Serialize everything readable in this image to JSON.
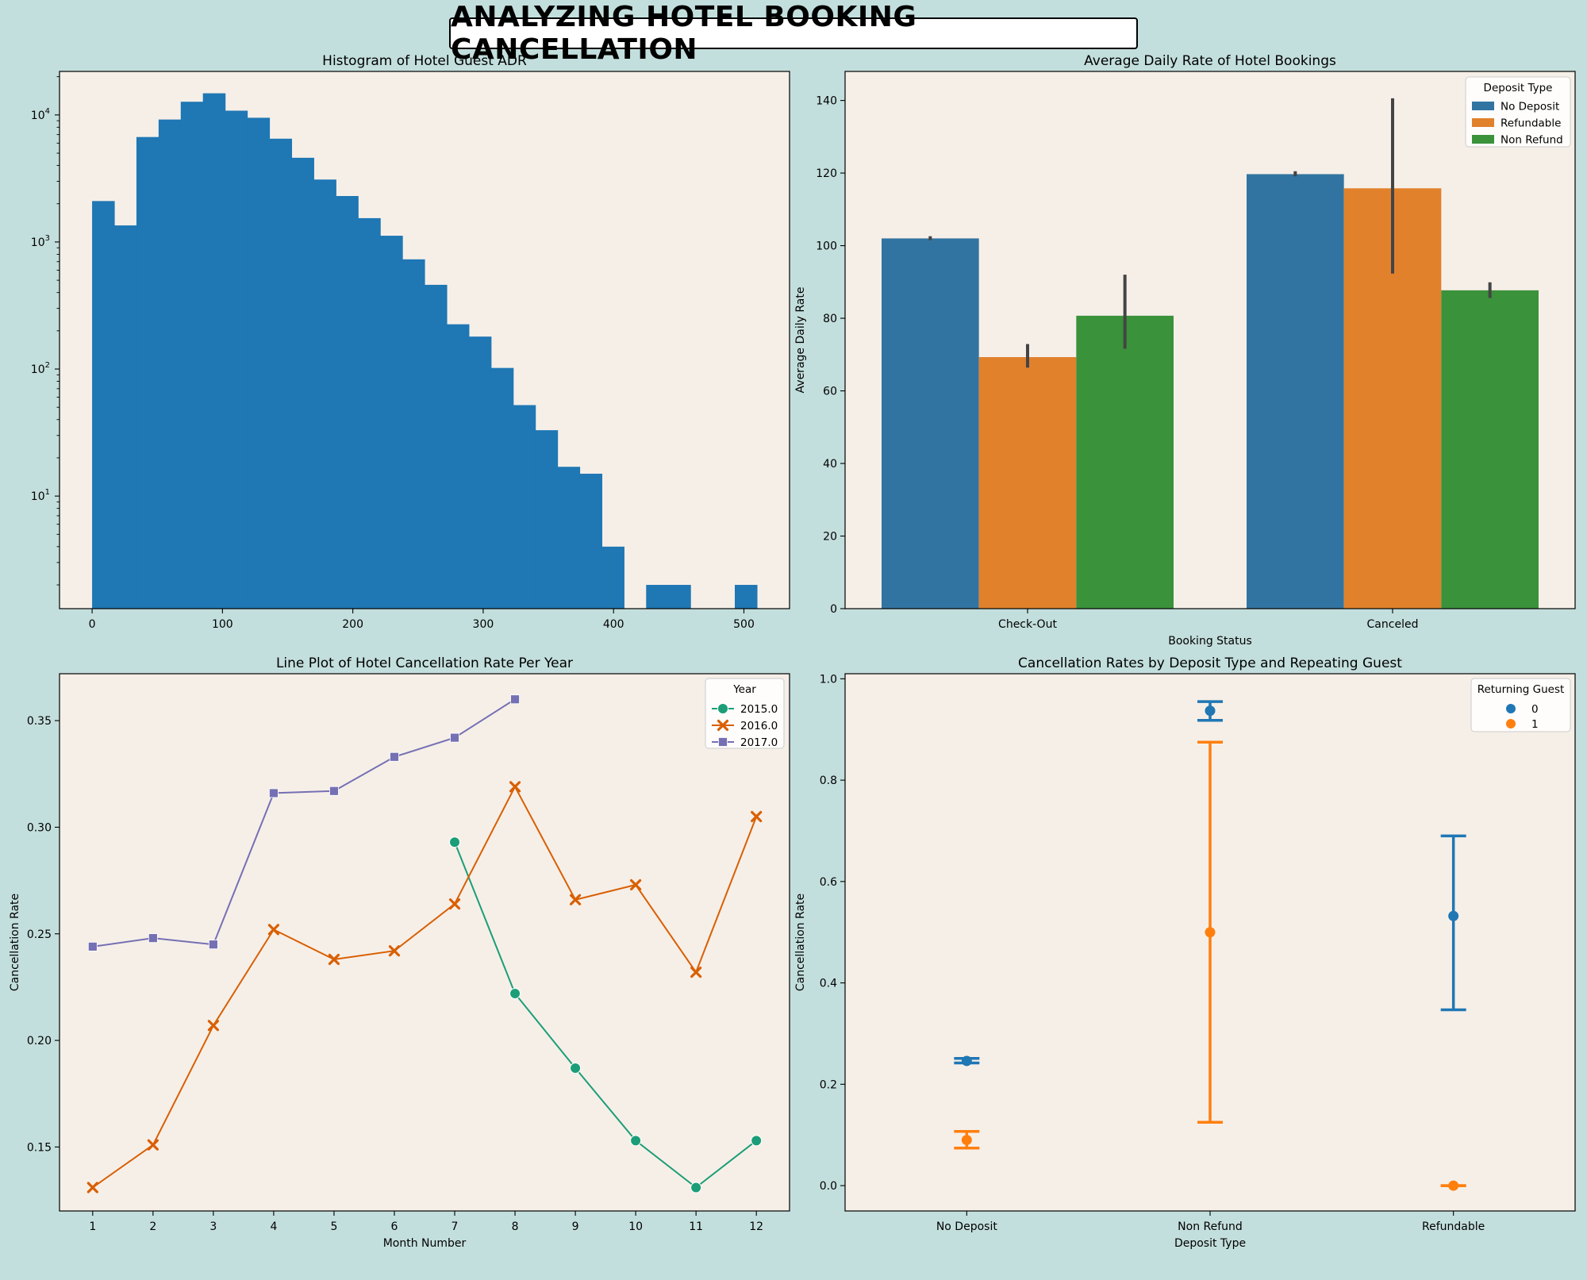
{
  "suptitle": "ANALYZING HOTEL BOOKING CANCELLATION",
  "colors": {
    "figure_bg": "#c3dfdd",
    "axes_bg": "#f6efe8",
    "blue": "#1f77b4",
    "orange": "#ff7f0e",
    "green": "#2ca02c",
    "bar_blue": "#3274a1",
    "bar_orange": "#e1812c",
    "bar_green": "#3a923a",
    "line_2015": "#1b9e77",
    "line_2016": "#d95f02",
    "line_2017": "#7570b3"
  },
  "chart_data": [
    {
      "type": "bar",
      "subtype": "histogram",
      "title": "Histogram of Hotel Guest ADR",
      "xlabel": "",
      "ylabel": "",
      "yscale": "log",
      "xlim": [
        -25,
        535
      ],
      "ylim": [
        1.3,
        22000
      ],
      "bin_width": 17,
      "bin_starts": [
        0,
        17,
        34,
        51,
        68,
        85,
        102,
        119,
        136,
        153,
        170,
        187,
        204,
        221,
        238,
        255,
        272,
        289,
        306,
        323,
        340,
        357,
        374,
        391,
        408,
        425,
        442,
        459,
        476,
        493
      ],
      "values": [
        2100,
        1350,
        6700,
        9200,
        12700,
        14800,
        10800,
        9500,
        6500,
        4600,
        3100,
        2300,
        1540,
        1120,
        730,
        460,
        225,
        180,
        102,
        52,
        33,
        17,
        15,
        4,
        0,
        2,
        2,
        0,
        0,
        2
      ],
      "xticks": [
        0,
        100,
        200,
        300,
        400,
        500
      ],
      "xtick_labels": [
        "0",
        "100",
        "200",
        "300",
        "400",
        "500"
      ],
      "ytick_labels": [
        {
          "base": "10",
          "exp": "1"
        },
        {
          "base": "10",
          "exp": "2"
        },
        {
          "base": "10",
          "exp": "3"
        },
        {
          "base": "10",
          "exp": "4"
        }
      ],
      "grid": false
    },
    {
      "type": "bar",
      "title": "Average Daily Rate of Hotel Bookings",
      "xlabel": "Booking Status",
      "ylabel": "Average Daily Rate",
      "categories": [
        "Check-Out",
        "Canceled"
      ],
      "ylim": [
        0,
        148
      ],
      "yticks": [
        0,
        20,
        40,
        60,
        80,
        100,
        120,
        140
      ],
      "legend_title": "Deposit Type",
      "legend_position": "top-right",
      "series": [
        {
          "name": "No Deposit",
          "values": [
            102.0,
            119.7
          ],
          "ci": [
            [
              101.5,
              102.6
            ],
            [
              119.1,
              120.5
            ]
          ]
        },
        {
          "name": "Refundable",
          "values": [
            69.3,
            115.8
          ],
          "ci": [
            [
              66.4,
              72.9
            ],
            [
              92.3,
              140.6
            ]
          ]
        },
        {
          "name": "Non Refund",
          "values": [
            80.7,
            87.7
          ],
          "ci": [
            [
              71.6,
              92.0
            ],
            [
              85.6,
              89.9
            ]
          ]
        }
      ],
      "grid": false
    },
    {
      "type": "line",
      "title": "Line Plot of Hotel Cancellation Rate Per Year",
      "xlabel": "Month Number",
      "ylabel": "Cancellation Rate",
      "xlim": [
        0.45,
        12.55
      ],
      "ylim": [
        0.12,
        0.372
      ],
      "xticks": [
        1,
        2,
        3,
        4,
        5,
        6,
        7,
        8,
        9,
        10,
        11,
        12
      ],
      "yticks": [
        0.15,
        0.2,
        0.25,
        0.3,
        0.35
      ],
      "ytick_labels": [
        "0.15",
        "0.20",
        "0.25",
        "0.30",
        "0.35"
      ],
      "legend_title": "Year",
      "legend_position": "top-right",
      "series": [
        {
          "name": "2015.0",
          "marker": "circle",
          "x": [
            7,
            8,
            9,
            10,
            11,
            12
          ],
          "values": [
            0.293,
            0.222,
            0.187,
            0.153,
            0.131,
            0.153
          ]
        },
        {
          "name": "2016.0",
          "marker": "x",
          "x": [
            1,
            2,
            3,
            4,
            5,
            6,
            7,
            8,
            9,
            10,
            11,
            12
          ],
          "values": [
            0.131,
            0.151,
            0.207,
            0.252,
            0.238,
            0.242,
            0.264,
            0.319,
            0.266,
            0.273,
            0.232,
            0.305
          ]
        },
        {
          "name": "2017.0",
          "marker": "square",
          "x": [
            1,
            2,
            3,
            4,
            5,
            6,
            7,
            8
          ],
          "values": [
            0.244,
            0.248,
            0.245,
            0.316,
            0.317,
            0.333,
            0.342,
            0.36
          ]
        }
      ],
      "grid": false
    },
    {
      "type": "scatter",
      "subtype": "pointplot",
      "title": "Cancellation Rates by Deposit Type and Repeating Guest",
      "xlabel": "Deposit Type",
      "ylabel": "Cancellation Rate",
      "categories": [
        "No Deposit",
        "Non Refund",
        "Refundable"
      ],
      "ylim": [
        -0.05,
        1.01
      ],
      "yticks": [
        0.0,
        0.2,
        0.4,
        0.6,
        0.8,
        1.0
      ],
      "ytick_labels": [
        "0.0",
        "0.2",
        "0.4",
        "0.6",
        "0.8",
        "1.0"
      ],
      "legend_title": "Returning Guest",
      "legend_position": "top-right",
      "series": [
        {
          "name": "0",
          "values": [
            0.246,
            0.937,
            0.532
          ],
          "ci": [
            [
              0.242,
              0.251
            ],
            [
              0.918,
              0.955
            ],
            [
              0.347,
              0.69
            ]
          ]
        },
        {
          "name": "1",
          "values": [
            0.09,
            0.5,
            0.0
          ],
          "ci": [
            [
              0.074,
              0.107
            ],
            [
              0.125,
              0.875
            ],
            [
              0.0,
              0.0
            ]
          ]
        }
      ],
      "grid": false
    }
  ]
}
